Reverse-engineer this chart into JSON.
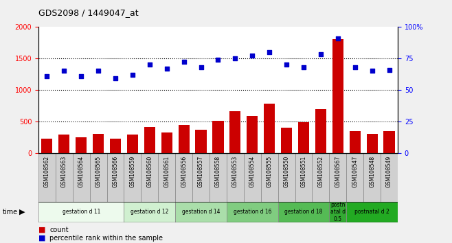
{
  "title": "GDS2098 / 1449047_at",
  "samples": [
    "GSM108562",
    "GSM108563",
    "GSM108564",
    "GSM108565",
    "GSM108566",
    "GSM108559",
    "GSM108560",
    "GSM108561",
    "GSM108556",
    "GSM108557",
    "GSM108558",
    "GSM108553",
    "GSM108554",
    "GSM108555",
    "GSM108550",
    "GSM108551",
    "GSM108552",
    "GSM108567",
    "GSM108547",
    "GSM108548",
    "GSM108549"
  ],
  "counts": [
    230,
    290,
    255,
    305,
    225,
    290,
    415,
    330,
    450,
    375,
    510,
    660,
    590,
    780,
    405,
    490,
    695,
    1800,
    345,
    305,
    345
  ],
  "percentiles": [
    61,
    65,
    61,
    65,
    59,
    62,
    70,
    67,
    72,
    68,
    74,
    75,
    77,
    80,
    70,
    68,
    78,
    91,
    68,
    65,
    66
  ],
  "groups": [
    {
      "label": "gestation d 11",
      "start": 0,
      "end": 5,
      "color": "#edfaed"
    },
    {
      "label": "gestation d 12",
      "start": 5,
      "end": 8,
      "color": "#d0f0d0"
    },
    {
      "label": "gestation d 14",
      "start": 8,
      "end": 11,
      "color": "#aadeaa"
    },
    {
      "label": "gestation d 16",
      "start": 11,
      "end": 14,
      "color": "#80cc80"
    },
    {
      "label": "gestation d 18",
      "start": 14,
      "end": 17,
      "color": "#55bb55"
    },
    {
      "label": "postn\natal d\n0.5",
      "start": 17,
      "end": 18,
      "color": "#33aa33"
    },
    {
      "label": "postnatal d 2",
      "start": 18,
      "end": 21,
      "color": "#22aa22"
    }
  ],
  "bar_color": "#cc0000",
  "dot_color": "#0000cc",
  "left_ylim": [
    0,
    2000
  ],
  "right_ylim": [
    0,
    100
  ],
  "left_yticks": [
    0,
    500,
    1000,
    1500,
    2000
  ],
  "right_yticks": [
    0,
    25,
    50,
    75,
    100
  ],
  "right_yticklabels": [
    "0",
    "25",
    "50",
    "75",
    "100%"
  ],
  "bg_color": "#f0f0f0",
  "plot_bg": "#ffffff",
  "legend_count": "count",
  "legend_pct": "percentile rank within the sample",
  "sample_box_color": "#d0d0d0",
  "sample_box_edge": "#888888"
}
